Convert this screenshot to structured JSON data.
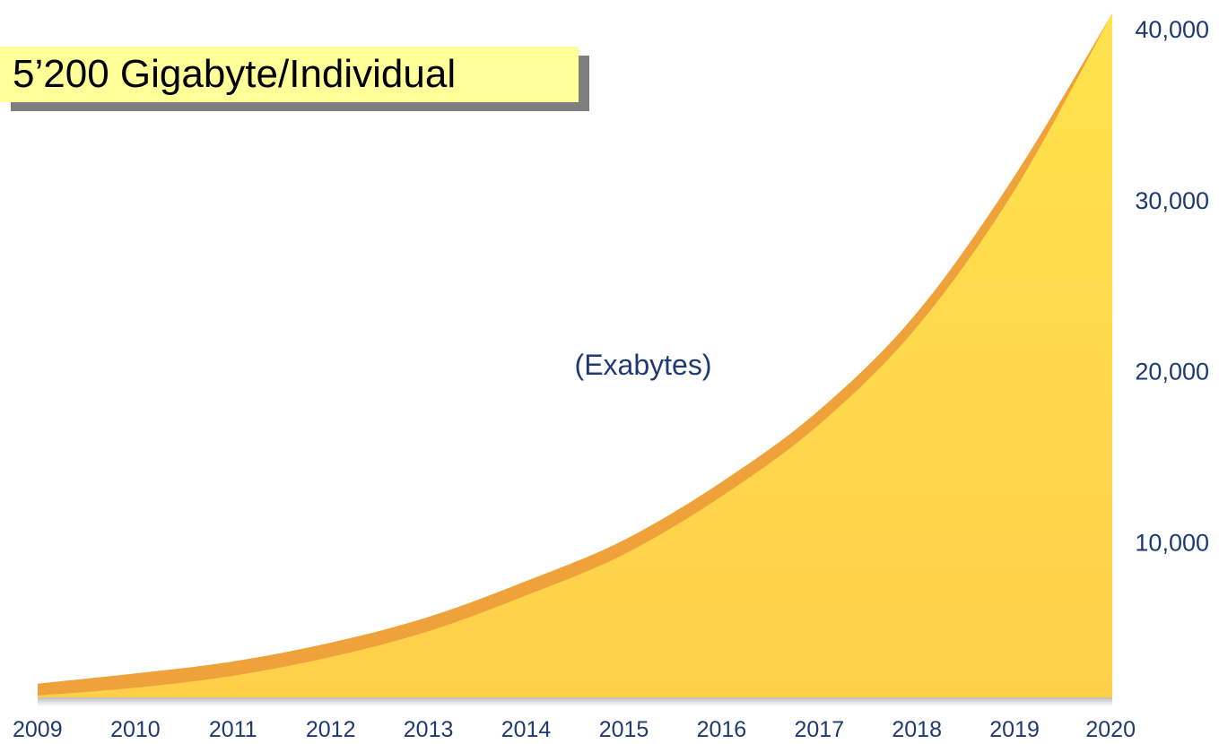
{
  "banner": {
    "text": "5’200 Gigabyte/Individual"
  },
  "chart_data": {
    "type": "area",
    "title": "",
    "xlabel": "",
    "ylabel": "",
    "unit_label": "(Exabytes)",
    "x": [
      "2009",
      "2010",
      "2011",
      "2012",
      "2013",
      "2014",
      "2015",
      "2016",
      "2017",
      "2018",
      "2019",
      "2020"
    ],
    "series": [
      {
        "values": [
          800,
          1400,
          2100,
          3200,
          4700,
          6800,
          9200,
          12600,
          16800,
          22500,
          30500,
          40000
        ]
      }
    ],
    "yticks": [
      10000,
      20000,
      30000,
      40000
    ],
    "ytick_labels": [
      "10,000",
      "20,000",
      "30,000",
      "40,000"
    ],
    "ylim": [
      0,
      40000
    ],
    "y_axis_side": "right",
    "grid": false,
    "colors": {
      "fill": "#ffd54a",
      "edge": "#f0a23a",
      "axis": "#1f3a73"
    }
  }
}
